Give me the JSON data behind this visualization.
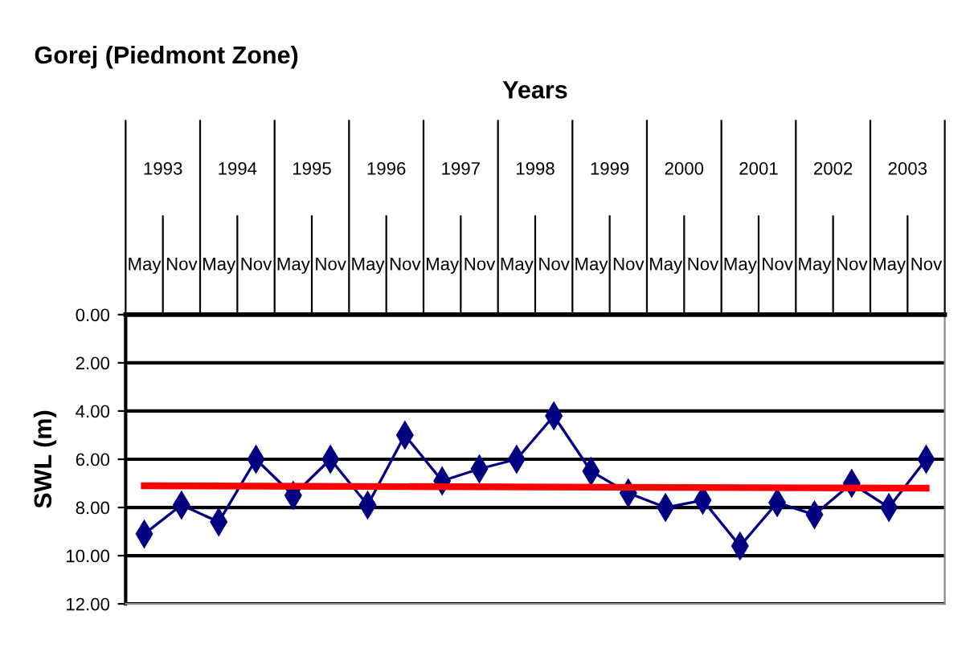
{
  "chart_data": {
    "type": "line",
    "title": "Gorej (Piedmont Zone)",
    "x2label": "Years",
    "ylabel": "SWL (m)",
    "categories": [
      "May",
      "Nov",
      "May",
      "Nov",
      "May",
      "Nov",
      "May",
      "Nov",
      "May",
      "Nov",
      "May",
      "Nov",
      "May",
      "Nov",
      "May",
      "Nov",
      "May",
      "Nov",
      "May",
      "Nov",
      "May",
      "Nov"
    ],
    "annotations": [
      "1993",
      "1994",
      "1995",
      "1996",
      "1997",
      "1998",
      "1999",
      "2000",
      "2001",
      "2002",
      "2003"
    ],
    "series": [
      {
        "color": "#000080",
        "marker": "diamond",
        "values": [
          9.1,
          7.9,
          8.6,
          6.0,
          7.5,
          6.0,
          7.9,
          5.0,
          6.9,
          6.4,
          6.0,
          4.2,
          6.5,
          7.4,
          8.0,
          7.7,
          9.6,
          7.8,
          8.3,
          7.0,
          8.0,
          6.0
        ]
      },
      {
        "color": "#ff0000",
        "marker": "none",
        "values": [
          7.1,
          null,
          null,
          null,
          null,
          null,
          null,
          null,
          null,
          null,
          null,
          null,
          null,
          null,
          null,
          null,
          null,
          null,
          null,
          null,
          null,
          7.2
        ]
      }
    ],
    "ylim": [
      12,
      0
    ],
    "yticks": [
      {
        "value": 0,
        "label": "0.00"
      },
      {
        "value": 2,
        "label": "2.00"
      },
      {
        "value": 4,
        "label": "4.00"
      },
      {
        "value": 6,
        "label": "6.00"
      },
      {
        "value": 8,
        "label": "8.00"
      },
      {
        "value": 10,
        "label": "10.00"
      },
      {
        "value": 12,
        "label": "12.00"
      }
    ],
    "grid": "y",
    "legend": false
  }
}
